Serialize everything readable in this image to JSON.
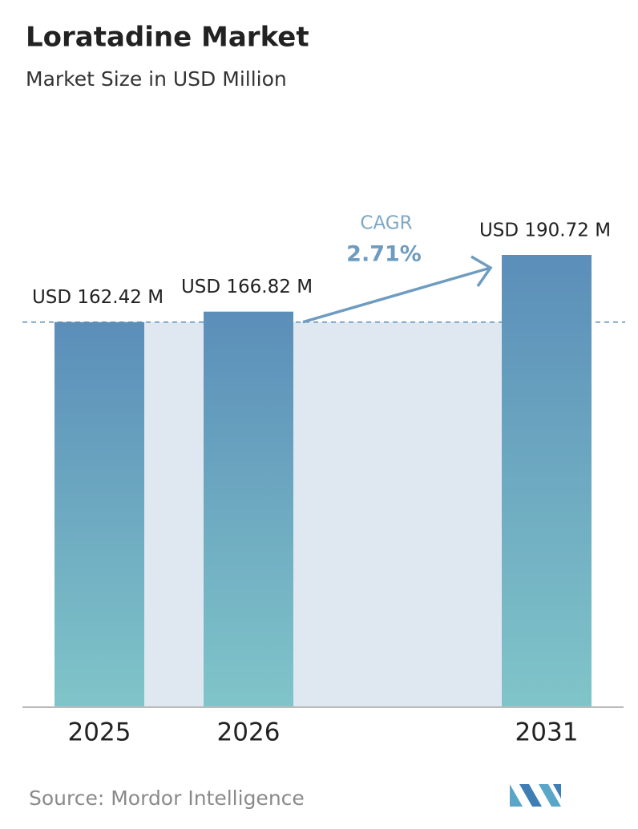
{
  "chart_data": {
    "type": "bar",
    "title": "Loratadine Market",
    "subtitle": "Market Size in USD Million",
    "categories": [
      "2025",
      "2026",
      "2031"
    ],
    "values": [
      162.42,
      166.82,
      190.72
    ],
    "value_labels": [
      "USD 162.42 M",
      "USD 166.82 M",
      "USD 190.72 M"
    ],
    "gradient": [
      "#5b8eb9",
      "#80c5c9"
    ],
    "annotation": {
      "label": "CAGR",
      "value": "2.71%"
    }
  },
  "source": "Source:  Mordor Intelligence"
}
